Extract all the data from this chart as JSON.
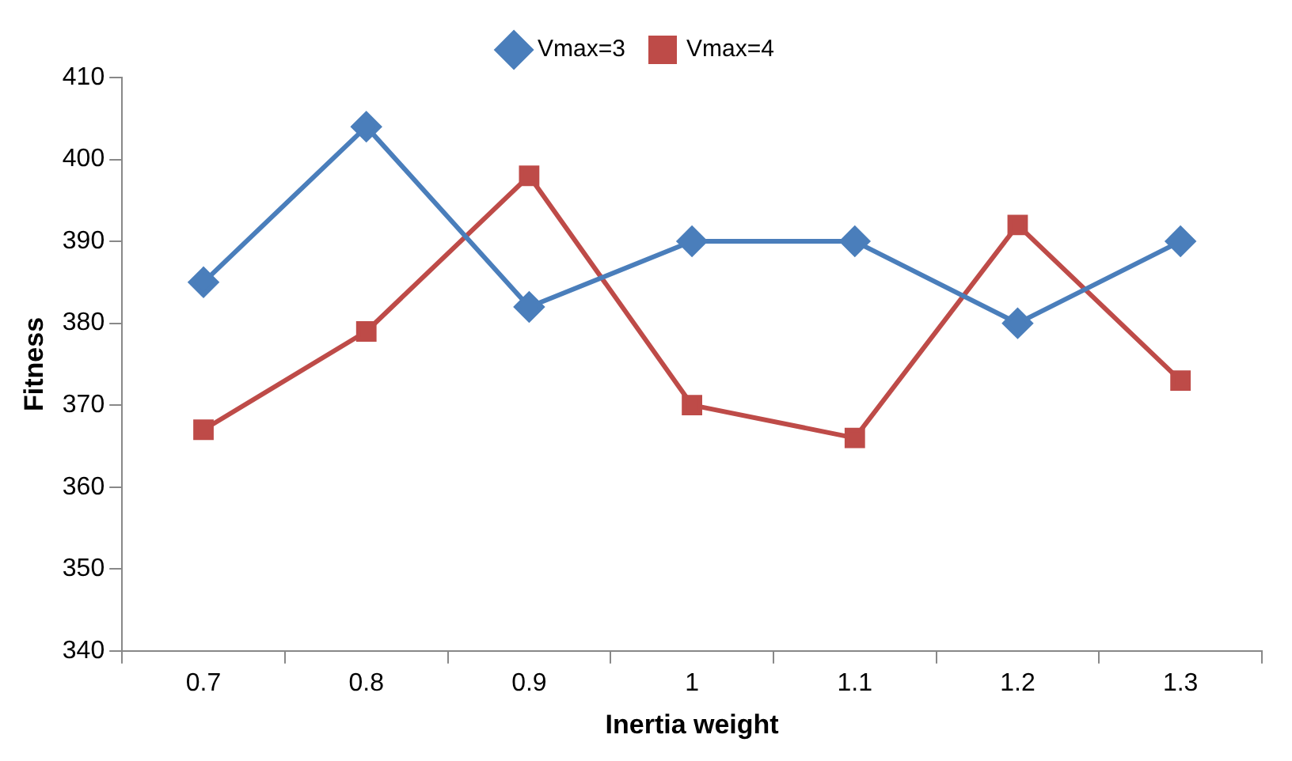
{
  "chart_data": {
    "type": "line",
    "xlabel": "Inertia weight",
    "ylabel": "Fitness",
    "categories": [
      "0.7",
      "0.8",
      "0.9",
      "1",
      "1.1",
      "1.2",
      "1.3"
    ],
    "series": [
      {
        "name": "Vmax=3",
        "color": "#4a7ebb",
        "marker": "diamond",
        "values": [
          385,
          404,
          382,
          390,
          390,
          380,
          390
        ]
      },
      {
        "name": "Vmax=4",
        "color": "#be4b48",
        "marker": "square",
        "values": [
          367,
          379,
          398,
          370,
          366,
          392,
          373
        ]
      }
    ],
    "ylim": [
      340,
      410
    ],
    "yticks": [
      340,
      350,
      360,
      370,
      380,
      390,
      400,
      410
    ],
    "grid": false,
    "legend": "top",
    "line_style": "solid"
  }
}
